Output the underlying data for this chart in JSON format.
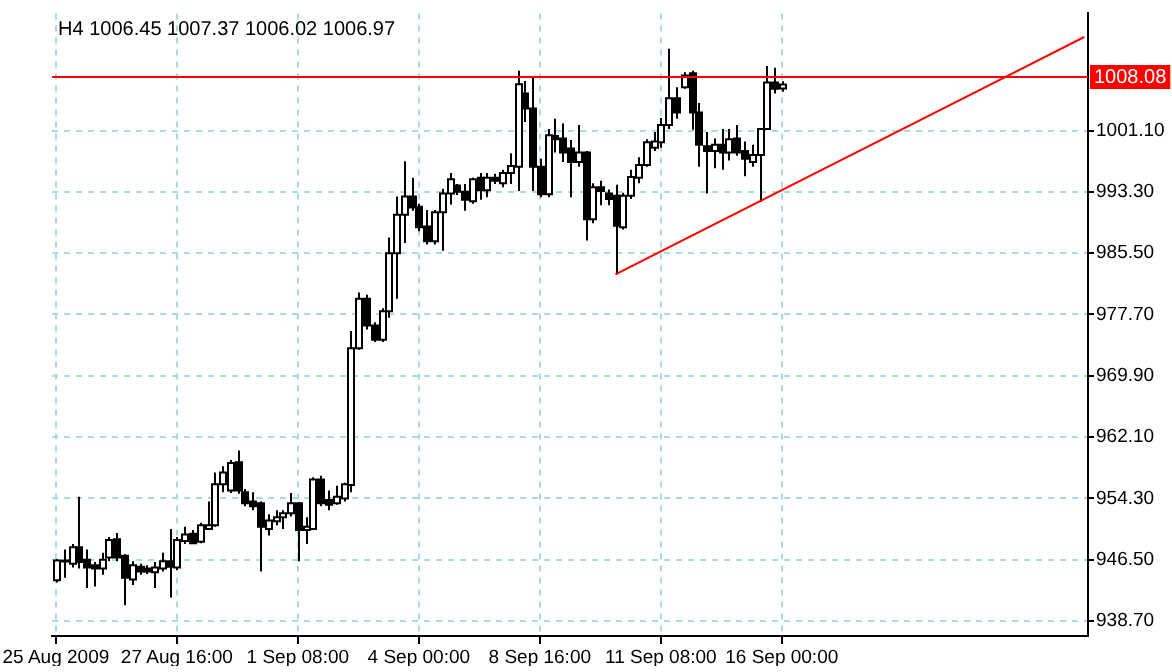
{
  "chart_data": {
    "type": "candlestick",
    "title": "H4 1006.45 1007.37 1006.02 1006.97",
    "categories": [
      "25 Aug 2009",
      null,
      null,
      null,
      null,
      null,
      null,
      null,
      null,
      null,
      null,
      null,
      null,
      null,
      null,
      null,
      "27 Aug 16:00",
      null,
      null,
      null,
      null,
      null,
      null,
      null,
      null,
      null,
      null,
      null,
      null,
      null,
      null,
      null,
      "1 Sep 08:00",
      null,
      null,
      null,
      null,
      null,
      null,
      null,
      null,
      null,
      null,
      null,
      null,
      null,
      null,
      null,
      "4 Sep 00:00",
      null,
      null,
      null,
      null,
      null,
      null,
      null,
      null,
      null,
      null,
      null,
      null,
      null,
      null,
      null,
      "8 Sep 16:00",
      null,
      null,
      null,
      null,
      null,
      null,
      null,
      null,
      null,
      null,
      null,
      null,
      null,
      null,
      null,
      "11 Sep 08:00",
      null,
      null,
      null,
      null,
      null,
      null,
      null,
      null,
      null,
      null,
      null,
      null,
      null,
      null,
      null,
      "16 Sep 00:00",
      null,
      null,
      null,
      null,
      null,
      null,
      null,
      null,
      null,
      null,
      null,
      null,
      null,
      null,
      null,
      null,
      null,
      null,
      null,
      null,
      null,
      null,
      null,
      null,
      null,
      null,
      null,
      null,
      null,
      null,
      null,
      null,
      null,
      null,
      null,
      null,
      null,
      null,
      null,
      null
    ],
    "ohlc": [
      [
        943.9,
        946.6,
        943.6,
        946.4
      ],
      [
        946.3,
        947.8,
        944.2,
        946.4
      ],
      [
        946.0,
        948.5,
        945.5,
        948.1
      ],
      [
        948.1,
        954.5,
        945.4,
        946.2
      ],
      [
        946.5,
        947.8,
        942.9,
        945.5
      ],
      [
        945.8,
        946.2,
        943.1,
        945.4
      ],
      [
        945.4,
        947.4,
        944.6,
        946.5
      ],
      [
        946.8,
        949.4,
        946.3,
        949.0
      ],
      [
        949.1,
        949.9,
        946.3,
        946.8
      ],
      [
        947.0,
        947.2,
        940.7,
        944.2
      ],
      [
        944.0,
        946.3,
        943.3,
        945.8
      ],
      [
        945.6,
        946.0,
        944.6,
        945.0
      ],
      [
        945.4,
        945.8,
        944.7,
        945.0
      ],
      [
        944.9,
        946.2,
        942.9,
        945.5
      ],
      [
        945.4,
        947.4,
        945.0,
        946.3
      ],
      [
        946.3,
        950.4,
        941.7,
        945.6
      ],
      [
        945.5,
        949.4,
        945.2,
        949.0
      ],
      [
        948.9,
        950.7,
        948.5,
        949.7
      ],
      [
        949.8,
        950.3,
        948.5,
        948.6
      ],
      [
        948.8,
        951.2,
        948.6,
        950.9
      ],
      [
        950.4,
        953.9,
        950.3,
        950.9
      ],
      [
        950.9,
        957.6,
        950.7,
        956.1
      ],
      [
        956.1,
        958.4,
        955.1,
        957.6
      ],
      [
        955.3,
        959.2,
        955.0,
        958.8
      ],
      [
        958.9,
        960.4,
        954.9,
        955.3
      ],
      [
        955.1,
        955.5,
        953.3,
        953.7
      ],
      [
        953.9,
        955.1,
        952.8,
        953.3
      ],
      [
        953.7,
        953.9,
        945.0,
        950.7
      ],
      [
        950.4,
        952.3,
        949.6,
        951.5
      ],
      [
        951.4,
        952.8,
        950.9,
        951.9
      ],
      [
        951.9,
        952.8,
        950.4,
        952.4
      ],
      [
        952.4,
        955.0,
        952.0,
        953.7
      ],
      [
        953.7,
        953.8,
        946.3,
        950.3
      ],
      [
        950.3,
        951.9,
        948.5,
        950.7
      ],
      [
        950.4,
        957.0,
        950.3,
        956.7
      ],
      [
        956.7,
        957.2,
        953.3,
        953.7
      ],
      [
        954.1,
        955.3,
        952.8,
        953.5
      ],
      [
        953.7,
        955.9,
        953.5,
        954.5
      ],
      [
        954.3,
        956.3,
        953.9,
        956.1
      ],
      [
        956.0,
        975.6,
        955.1,
        973.4
      ],
      [
        973.4,
        980.5,
        973.2,
        979.7
      ],
      [
        979.7,
        980.2,
        975.8,
        976.3
      ],
      [
        976.3,
        976.7,
        974.2,
        974.5
      ],
      [
        974.5,
        978.5,
        974.2,
        978.1
      ],
      [
        978.1,
        987.5,
        977.3,
        985.5
      ],
      [
        985.5,
        992.7,
        979.7,
        990.4
      ],
      [
        990.4,
        997.2,
        986.8,
        992.7
      ],
      [
        992.7,
        995.1,
        990.9,
        991.3
      ],
      [
        991.4,
        991.8,
        988.3,
        988.8
      ],
      [
        988.9,
        991.0,
        986.6,
        987.0
      ],
      [
        987.0,
        991.0,
        986.6,
        990.7
      ],
      [
        990.7,
        993.7,
        985.8,
        993.1
      ],
      [
        993.1,
        995.7,
        991.7,
        994.9
      ],
      [
        994.1,
        994.3,
        992.9,
        993.3
      ],
      [
        993.3,
        994.3,
        990.9,
        992.3
      ],
      [
        992.1,
        995.1,
        991.8,
        994.9
      ],
      [
        995.1,
        995.7,
        992.3,
        993.5
      ],
      [
        993.5,
        995.7,
        992.6,
        995.1
      ],
      [
        995.1,
        995.6,
        994.3,
        994.7
      ],
      [
        994.4,
        996.1,
        993.9,
        995.7
      ],
      [
        995.7,
        998.2,
        994.3,
        996.6
      ],
      [
        996.5,
        1008.7,
        993.4,
        1007.0
      ],
      [
        1005.8,
        1007.4,
        1002.2,
        1003.9
      ],
      [
        1003.9,
        1007.8,
        993.4,
        996.5
      ],
      [
        996.5,
        997.5,
        992.6,
        993.0
      ],
      [
        993.0,
        1001.3,
        992.6,
        1000.5
      ],
      [
        1000.4,
        1002.6,
        998.3,
        1000.0
      ],
      [
        1000.1,
        1002.0,
        997.1,
        998.3
      ],
      [
        998.8,
        999.9,
        992.6,
        997.1
      ],
      [
        997.1,
        1001.8,
        996.5,
        998.3
      ],
      [
        998.3,
        998.5,
        987.1,
        989.8
      ],
      [
        989.8,
        994.4,
        989.3,
        993.9
      ],
      [
        993.9,
        994.7,
        991.6,
        993.4
      ],
      [
        993.1,
        993.6,
        991.6,
        992.4
      ],
      [
        992.8,
        994.2,
        982.8,
        989.0
      ],
      [
        988.8,
        993.2,
        988.5,
        992.8
      ],
      [
        992.8,
        996.1,
        992.4,
        995.2
      ],
      [
        995.1,
        997.7,
        994.4,
        996.7
      ],
      [
        996.7,
        1000.0,
        996.5,
        999.6
      ],
      [
        998.9,
        1000.9,
        998.5,
        999.7
      ],
      [
        999.6,
        1002.7,
        998.9,
        1001.8
      ],
      [
        1001.8,
        1011.5,
        1001.3,
        1005.2
      ],
      [
        1005.2,
        1006.6,
        1002.6,
        1003.4
      ],
      [
        1006.6,
        1008.5,
        1006.4,
        1008.1
      ],
      [
        1008.4,
        1008.7,
        1001.2,
        1003.4
      ],
      [
        1003.4,
        1004.6,
        996.5,
        999.3
      ],
      [
        999.1,
        1000.9,
        993.1,
        998.5
      ],
      [
        998.5,
        1000.1,
        996.3,
        999.3
      ],
      [
        999.3,
        1001.3,
        996.1,
        998.3
      ],
      [
        998.3,
        1001.3,
        997.3,
        1000.0
      ],
      [
        1000.1,
        1001.8,
        997.9,
        998.3
      ],
      [
        998.5,
        999.7,
        995.3,
        997.5
      ],
      [
        997.1,
        999.3,
        996.5,
        998.0
      ],
      [
        998.0,
        1001.3,
        992.0,
        1001.3
      ],
      [
        1001.3,
        1009.3,
        1001.2,
        1007.2
      ],
      [
        1007.2,
        1009.1,
        1005.8,
        1006.4
      ],
      [
        1006.45,
        1007.37,
        1006.02,
        1006.97
      ],
      null,
      null,
      null,
      null,
      null,
      null,
      null,
      null,
      null,
      null,
      null,
      null,
      null,
      null,
      null,
      null,
      null,
      null,
      null,
      null,
      null,
      null,
      null,
      null,
      null,
      null,
      null,
      null,
      null,
      null,
      null,
      null,
      null,
      null,
      null,
      null,
      null,
      null,
      null,
      null
    ],
    "series": [
      {
        "type": "line",
        "color": "#ff0000",
        "values": [
          null,
          null,
          null,
          null,
          null,
          null,
          null,
          null,
          null,
          null,
          null,
          null,
          null,
          null,
          null,
          null,
          null,
          null,
          null,
          null,
          null,
          null,
          null,
          null,
          null,
          null,
          null,
          null,
          null,
          null,
          null,
          null,
          null,
          null,
          null,
          null,
          null,
          null,
          null,
          null,
          null,
          null,
          null,
          null,
          null,
          null,
          null,
          null,
          null,
          null,
          null,
          null,
          null,
          null,
          null,
          null,
          null,
          null,
          null,
          null,
          null,
          null,
          null,
          null,
          null,
          null,
          null,
          null,
          null,
          null,
          null,
          null,
          null,
          null,
          982.8,
          null,
          null,
          null,
          null,
          null,
          null,
          null,
          null,
          null,
          null,
          null,
          null,
          null,
          null,
          null,
          null,
          null,
          null,
          null,
          null,
          null,
          null,
          null,
          null,
          null,
          null,
          null,
          null,
          null,
          null,
          null,
          null,
          null,
          null,
          null,
          null,
          null,
          null,
          null,
          null,
          null,
          null,
          null,
          null,
          null,
          null,
          null,
          null,
          null,
          null,
          null,
          null,
          null,
          null,
          null,
          null,
          null,
          null,
          null,
          null,
          null,
          1013.0
        ]
      }
    ],
    "ylim": [
      936.8,
      1016.0
    ],
    "yticks": [
      {
        "value": 938.7,
        "label": "938.70"
      },
      {
        "value": 946.5,
        "label": "946.50"
      },
      {
        "value": 954.3,
        "label": "954.30"
      },
      {
        "value": 962.1,
        "label": "962.10"
      },
      {
        "value": 969.9,
        "label": "969.90"
      },
      {
        "value": 977.7,
        "label": "977.70"
      },
      {
        "value": 985.5,
        "label": "985.50"
      },
      {
        "value": 993.3,
        "label": "993.30"
      },
      {
        "value": 1001.1,
        "label": "1001.10"
      }
    ],
    "ref_lines": [
      {
        "axis": "y",
        "value": 1008.08,
        "label": "1008.08",
        "color": "#ff0000"
      }
    ],
    "grid": true,
    "legend": false
  }
}
